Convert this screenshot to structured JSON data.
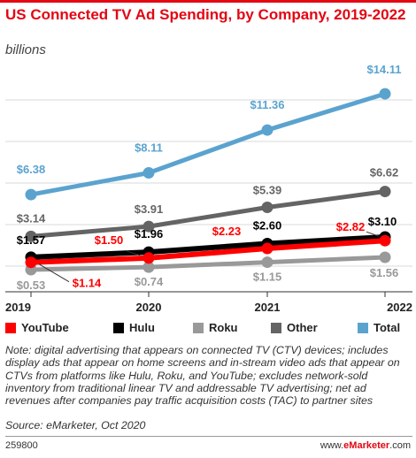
{
  "header": {
    "title": "US Connected TV Ad Spending, by Company, 2019-2022",
    "subtitle": "billions"
  },
  "colors": {
    "YouTube": "#ff0000",
    "Hulu": "#000000",
    "Roku": "#999999",
    "Other": "#646464",
    "Total": "#5ba3cf"
  },
  "chart_data": {
    "type": "line",
    "title": "US Connected TV Ad Spending, by Company, 2019-2022",
    "subtitle": "billions",
    "categories": [
      "2019",
      "2020",
      "2021",
      "2022"
    ],
    "series": [
      {
        "name": "YouTube",
        "values": [
          1.14,
          1.5,
          2.23,
          2.82
        ],
        "labels": [
          "$1.14",
          "$1.50",
          "$2.23",
          "$2.82"
        ]
      },
      {
        "name": "Hulu",
        "values": [
          1.57,
          1.96,
          2.6,
          3.1
        ],
        "labels": [
          "$1.57",
          "$1.96",
          "$2.60",
          "$3.10"
        ]
      },
      {
        "name": "Roku",
        "values": [
          0.53,
          0.74,
          1.15,
          1.56
        ],
        "labels": [
          "$0.53",
          "$0.74",
          "$1.15",
          "$1.56"
        ]
      },
      {
        "name": "Other",
        "values": [
          3.14,
          3.91,
          5.39,
          6.62
        ],
        "labels": [
          "$3.14",
          "$3.91",
          "$5.39",
          "$6.62"
        ]
      },
      {
        "name": "Total",
        "values": [
          6.38,
          8.11,
          11.36,
          14.11
        ],
        "labels": [
          "$6.38",
          "$8.11",
          "$11.36",
          "$14.11"
        ]
      }
    ],
    "legend_position": "bottom",
    "grid": true
  },
  "legend": {
    "items": [
      {
        "label": "YouTube"
      },
      {
        "label": "Hulu"
      },
      {
        "label": "Roku"
      },
      {
        "label": "Other"
      },
      {
        "label": "Total"
      }
    ]
  },
  "footer": {
    "note": "Note: digital advertising that appears on connected TV (CTV) devices; includes display ads that appear on home screens and in-stream video ads that appear on CTVs from platforms like Hulu, Roku, and YouTube; excludes network-sold inventory from traditional linear TV and addressable TV advertising; net ad revenues after companies pay traffic acquisition costs (TAC) to partner sites",
    "source": "Source: eMarketer, Oct 2020",
    "code": "259800",
    "credit_prefix": "www.",
    "credit_brand": "eMarketer",
    "credit_suffix": ".com"
  }
}
